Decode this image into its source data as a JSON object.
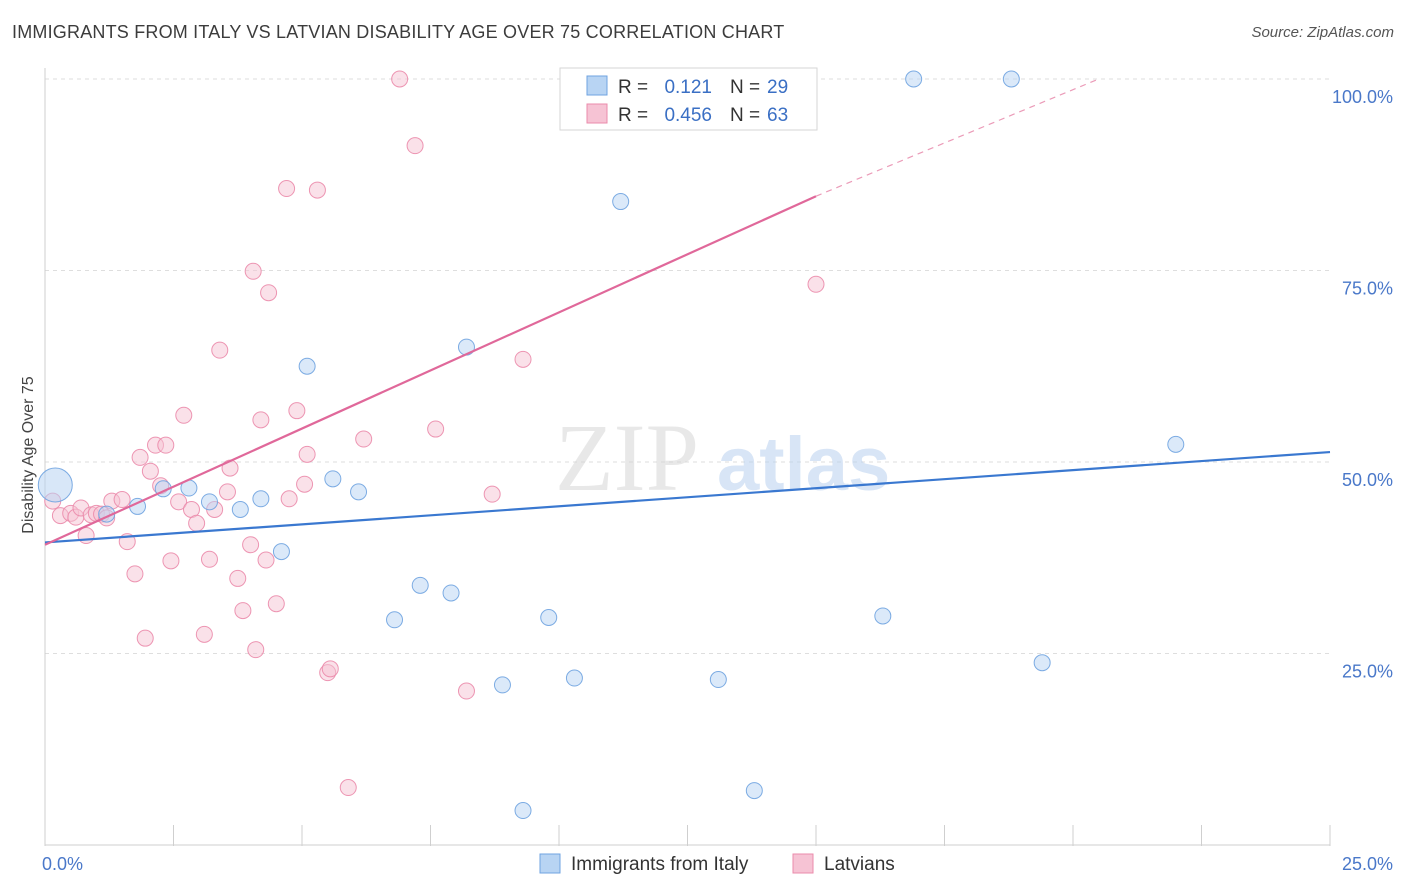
{
  "chart_data": {
    "type": "scatter",
    "title": "IMMIGRANTS FROM ITALY VS LATVIAN DISABILITY AGE OVER 75 CORRELATION CHART",
    "source": "Source: ZipAtlas.com",
    "watermark": {
      "zip": "ZIP",
      "atlas": "atlas"
    },
    "ylabel": "Disability Age Over 75",
    "xlabel": "",
    "xlim": [
      0,
      25
    ],
    "ylim": [
      0,
      100
    ],
    "x_tick_labels": [
      {
        "value": 0,
        "label": "0.0%"
      },
      {
        "value": 25,
        "label": "25.0%"
      }
    ],
    "y_tick_labels": [
      {
        "value": 25,
        "label": "25.0%"
      },
      {
        "value": 50,
        "label": "50.0%"
      },
      {
        "value": 75,
        "label": "75.0%"
      },
      {
        "value": 100,
        "label": "100.0%"
      }
    ],
    "grid": true,
    "legend_position": "top-center",
    "stats_legend": [
      {
        "r_label": "R =",
        "r_value": "0.121",
        "n_label": "N =",
        "n_value": "29",
        "color": "#6fa3e0"
      },
      {
        "r_label": "R =",
        "r_value": "0.456",
        "n_label": "N =",
        "n_value": "63",
        "color": "#eb8bab"
      }
    ],
    "series": [
      {
        "name": "Immigrants from Italy",
        "color": "#6fa3e0",
        "fill": "#b8d4f3",
        "trend": {
          "x": [
            0,
            25
          ],
          "y": [
            39.5,
            51.3
          ]
        },
        "points": [
          {
            "x": 0.2,
            "y": 47.0,
            "big": true
          },
          {
            "x": 1.2,
            "y": 43.2
          },
          {
            "x": 1.8,
            "y": 44.2
          },
          {
            "x": 2.3,
            "y": 46.5
          },
          {
            "x": 2.8,
            "y": 46.6
          },
          {
            "x": 3.2,
            "y": 44.8
          },
          {
            "x": 3.8,
            "y": 43.8
          },
          {
            "x": 4.2,
            "y": 45.2
          },
          {
            "x": 4.6,
            "y": 38.3
          },
          {
            "x": 5.1,
            "y": 62.5
          },
          {
            "x": 5.6,
            "y": 47.8
          },
          {
            "x": 6.1,
            "y": 46.1
          },
          {
            "x": 6.8,
            "y": 29.4
          },
          {
            "x": 7.3,
            "y": 33.9
          },
          {
            "x": 7.9,
            "y": 32.9
          },
          {
            "x": 8.2,
            "y": 65.0
          },
          {
            "x": 8.9,
            "y": 20.9
          },
          {
            "x": 9.3,
            "y": 4.5
          },
          {
            "x": 9.8,
            "y": 29.7
          },
          {
            "x": 10.3,
            "y": 21.8
          },
          {
            "x": 11.2,
            "y": 84.0
          },
          {
            "x": 13.1,
            "y": 21.6
          },
          {
            "x": 13.8,
            "y": 7.1
          },
          {
            "x": 16.3,
            "y": 29.9
          },
          {
            "x": 16.9,
            "y": 100.0
          },
          {
            "x": 18.8,
            "y": 100.0
          },
          {
            "x": 19.4,
            "y": 23.8
          },
          {
            "x": 22.0,
            "y": 52.3
          }
        ]
      },
      {
        "name": "Latvians",
        "color": "#eb8bab",
        "fill": "#f6c3d4",
        "trend": {
          "x": [
            0,
            15
          ],
          "y": [
            39.2,
            84.7
          ]
        },
        "trend_dashed": {
          "x": [
            15,
            20.5
          ],
          "y": [
            84.7,
            100.0
          ]
        },
        "points": [
          {
            "x": 0.15,
            "y": 44.9
          },
          {
            "x": 0.3,
            "y": 43.0
          },
          {
            "x": 0.5,
            "y": 43.3
          },
          {
            "x": 0.6,
            "y": 42.8
          },
          {
            "x": 0.7,
            "y": 44.0
          },
          {
            "x": 0.9,
            "y": 43.1
          },
          {
            "x": 1.0,
            "y": 43.3
          },
          {
            "x": 1.1,
            "y": 43.2
          },
          {
            "x": 1.2,
            "y": 42.7
          },
          {
            "x": 0.8,
            "y": 40.4
          },
          {
            "x": 1.3,
            "y": 44.9
          },
          {
            "x": 1.5,
            "y": 45.1
          },
          {
            "x": 1.6,
            "y": 39.6
          },
          {
            "x": 1.75,
            "y": 35.4
          },
          {
            "x": 1.85,
            "y": 50.6
          },
          {
            "x": 1.95,
            "y": 27.0
          },
          {
            "x": 2.05,
            "y": 48.8
          },
          {
            "x": 2.15,
            "y": 52.2
          },
          {
            "x": 2.25,
            "y": 46.9
          },
          {
            "x": 2.35,
            "y": 52.2
          },
          {
            "x": 2.45,
            "y": 37.1
          },
          {
            "x": 2.6,
            "y": 44.8
          },
          {
            "x": 2.7,
            "y": 56.1
          },
          {
            "x": 2.85,
            "y": 43.8
          },
          {
            "x": 2.95,
            "y": 42.0
          },
          {
            "x": 3.1,
            "y": 27.5
          },
          {
            "x": 3.2,
            "y": 37.3
          },
          {
            "x": 3.3,
            "y": 43.8
          },
          {
            "x": 3.4,
            "y": 64.6
          },
          {
            "x": 3.55,
            "y": 46.1
          },
          {
            "x": 3.6,
            "y": 49.2
          },
          {
            "x": 3.75,
            "y": 34.8
          },
          {
            "x": 3.85,
            "y": 30.6
          },
          {
            "x": 4.0,
            "y": 39.2
          },
          {
            "x": 4.05,
            "y": 74.9
          },
          {
            "x": 4.1,
            "y": 25.5
          },
          {
            "x": 4.2,
            "y": 55.5
          },
          {
            "x": 4.3,
            "y": 37.2
          },
          {
            "x": 4.35,
            "y": 72.1
          },
          {
            "x": 4.5,
            "y": 31.5
          },
          {
            "x": 4.7,
            "y": 85.7
          },
          {
            "x": 4.75,
            "y": 45.2
          },
          {
            "x": 4.9,
            "y": 56.7
          },
          {
            "x": 5.05,
            "y": 47.1
          },
          {
            "x": 5.1,
            "y": 51.0
          },
          {
            "x": 5.3,
            "y": 85.5
          },
          {
            "x": 5.5,
            "y": 22.5
          },
          {
            "x": 5.55,
            "y": 23.0
          },
          {
            "x": 5.9,
            "y": 7.5
          },
          {
            "x": 6.2,
            "y": 53.0
          },
          {
            "x": 6.9,
            "y": 100.0
          },
          {
            "x": 7.2,
            "y": 91.3
          },
          {
            "x": 7.6,
            "y": 54.3
          },
          {
            "x": 8.2,
            "y": 20.1
          },
          {
            "x": 8.7,
            "y": 45.8
          },
          {
            "x": 9.3,
            "y": 63.4
          },
          {
            "x": 10.2,
            "y": 100.0
          },
          {
            "x": 15.0,
            "y": 73.2
          }
        ]
      }
    ]
  }
}
